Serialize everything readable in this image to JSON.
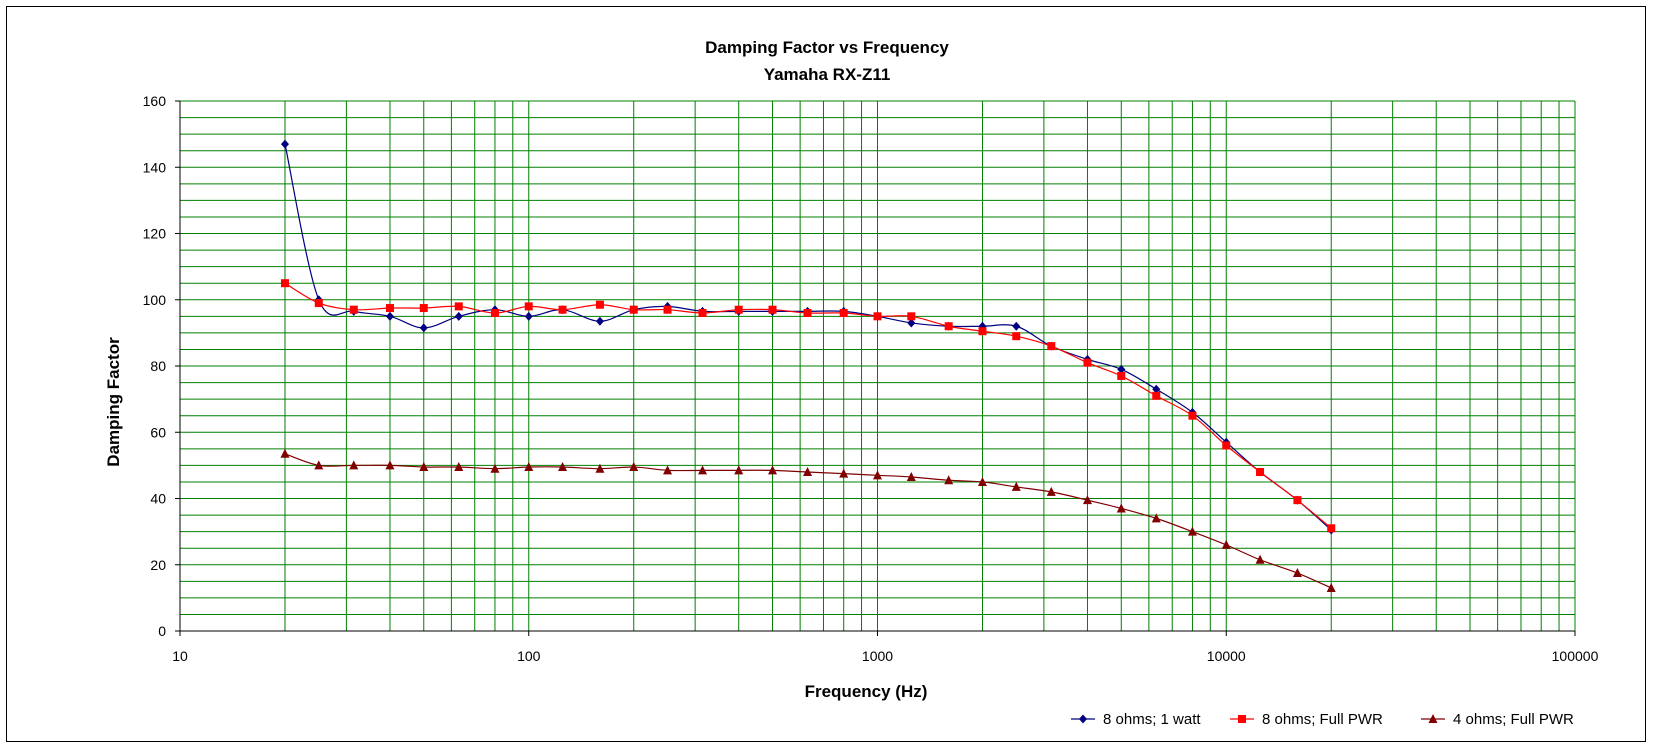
{
  "chart_data": {
    "type": "line",
    "title": "Damping Factor  vs Frequency",
    "subtitle": "Yamaha RX-Z11",
    "xlabel": "Frequency (Hz)",
    "ylabel": "Damping Factor",
    "x_scale": "log",
    "xlim": [
      10,
      100000
    ],
    "ylim": [
      0,
      160
    ],
    "x_ticks": [
      "10",
      "100",
      "1000",
      "10000",
      "100000"
    ],
    "y_ticks": [
      "0",
      "20",
      "40",
      "60",
      "80",
      "100",
      "120",
      "140",
      "160"
    ],
    "grid": true,
    "legend_position": "bottom-right",
    "x": [
      20,
      25,
      31.5,
      40,
      50,
      63,
      80,
      100,
      125,
      160,
      200,
      250,
      315,
      400,
      500,
      630,
      800,
      1000,
      1250,
      1600,
      2000,
      2500,
      3150,
      4000,
      5000,
      6300,
      8000,
      10000,
      12500,
      16000,
      20000
    ],
    "series": [
      {
        "name": "8 ohms; 1 watt",
        "color": "#000080",
        "marker": "diamond",
        "values": [
          147,
          100,
          96.5,
          95,
          91.5,
          95,
          97,
          95,
          97,
          93.5,
          97,
          98,
          96.5,
          96.5,
          96.5,
          96.5,
          96.5,
          95,
          93,
          92,
          92,
          92,
          86,
          82,
          79,
          73,
          66,
          57,
          48,
          39.5,
          30.5
        ]
      },
      {
        "name": "8 ohms; Full PWR",
        "color": "#ff0000",
        "marker": "square",
        "values": [
          105,
          99,
          97,
          97.5,
          97.5,
          98,
          96,
          98,
          97,
          98.5,
          97,
          97,
          96,
          97,
          97,
          96,
          96,
          95,
          95,
          92,
          90.5,
          89,
          86,
          81,
          77,
          71,
          65,
          56,
          48,
          39.5,
          31
        ]
      },
      {
        "name": "4 ohms; Full PWR",
        "color": "#800000",
        "marker": "triangle",
        "values": [
          53.5,
          50,
          50,
          50,
          49.5,
          49.5,
          49,
          49.5,
          49.5,
          49,
          49.5,
          48.5,
          48.5,
          48.5,
          48.5,
          48,
          47.5,
          47,
          46.5,
          45.5,
          45,
          43.5,
          42,
          39.5,
          37,
          34,
          30,
          26,
          21.5,
          17.5,
          13
        ]
      }
    ]
  },
  "colors": {
    "grid": "#008000",
    "axis": "#000000",
    "frame": "#000000"
  }
}
